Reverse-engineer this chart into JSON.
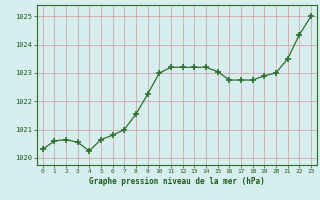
{
  "x": [
    0,
    1,
    2,
    3,
    4,
    5,
    6,
    7,
    8,
    9,
    10,
    11,
    12,
    13,
    14,
    15,
    16,
    17,
    18,
    19,
    20,
    21,
    22,
    23
  ],
  "y": [
    1020.3,
    1020.6,
    1020.65,
    1020.55,
    1020.25,
    1020.65,
    1020.8,
    1021.0,
    1021.55,
    1022.25,
    1023.0,
    1023.2,
    1023.2,
    1023.2,
    1023.2,
    1023.05,
    1022.75,
    1022.75,
    1022.75,
    1022.9,
    1023.0,
    1023.5,
    1024.35,
    1025.0
  ],
  "line_color": "#2d6e2d",
  "marker_color": "#2d6e2d",
  "bg_color": "#d6eeee",
  "grid_color": "#cc9999",
  "xlabel": "Graphe pression niveau de la mer (hPa)",
  "xlabel_color": "#1a5c1a",
  "tick_color": "#1a5c1a",
  "spine_color": "#2d6e2d",
  "ylabel_ticks": [
    1020,
    1021,
    1022,
    1023,
    1024,
    1025
  ],
  "xlim": [
    -0.5,
    23.5
  ],
  "ylim": [
    1019.75,
    1025.4
  ]
}
